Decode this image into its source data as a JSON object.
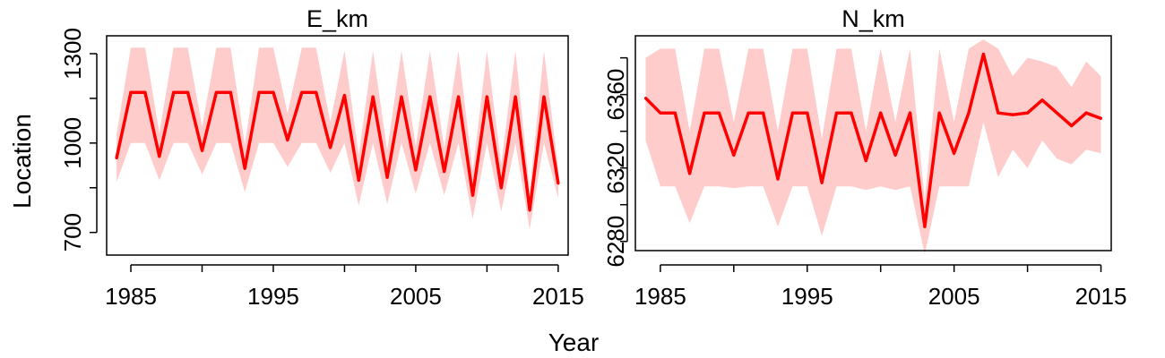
{
  "figure": {
    "xlabel": "Year",
    "ylabel": "Location"
  },
  "colors": {
    "line": "#ff0000",
    "band": "#ffcccc",
    "axis": "#000000"
  },
  "chart_data": [
    {
      "type": "line",
      "title": "E_km",
      "xlim": [
        1983.3,
        2015.7
      ],
      "ylim": [
        624,
        1360
      ],
      "xticks": [
        1985,
        1990,
        1995,
        2000,
        2005,
        2010,
        2015
      ],
      "xtick_labels": [
        "1985",
        "",
        "1995",
        "",
        "2005",
        "",
        "2015"
      ],
      "yticks": [
        700,
        850,
        1000,
        1150,
        1300
      ],
      "ytick_labels": [
        "700",
        "",
        "1000",
        "",
        "1300"
      ],
      "series": [
        {
          "x": [
            1984,
            1985,
            1986,
            1987,
            1988,
            1989,
            1990,
            1991,
            1992,
            1993,
            1994,
            1995,
            1996,
            1997,
            1998,
            1999,
            2000,
            2001,
            2002,
            2003,
            2004,
            2005,
            2006,
            2007,
            2008,
            2009,
            2010,
            2011,
            2012,
            2013,
            2014,
            2015
          ],
          "y": [
            950,
            1170,
            1170,
            955,
            1170,
            1170,
            975,
            1170,
            1170,
            915,
            1170,
            1170,
            1010,
            1170,
            1170,
            985,
            1160,
            875,
            1155,
            885,
            1155,
            910,
            1155,
            905,
            1155,
            825,
            1155,
            850,
            1155,
            775,
            1155,
            865
          ],
          "lower": [
            870,
            1000,
            1000,
            875,
            1000,
            1000,
            895,
            1000,
            1000,
            835,
            1000,
            1000,
            920,
            1000,
            1000,
            900,
            1000,
            790,
            1000,
            795,
            1000,
            830,
            1000,
            825,
            1000,
            745,
            1000,
            770,
            1000,
            710,
            1000,
            815
          ],
          "upper": [
            1030,
            1320,
            1320,
            1035,
            1320,
            1320,
            1055,
            1320,
            1320,
            995,
            1320,
            1320,
            1100,
            1320,
            1320,
            1070,
            1310,
            960,
            1310,
            975,
            1310,
            990,
            1310,
            985,
            1310,
            905,
            1310,
            930,
            1310,
            840,
            1310,
            915
          ]
        }
      ]
    },
    {
      "type": "line",
      "title": "N_km",
      "xlim": [
        1983.3,
        2015.7
      ],
      "ylim": [
        6275,
        6392
      ],
      "xticks": [
        1985,
        1990,
        1995,
        2000,
        2005,
        2010,
        2015
      ],
      "xtick_labels": [
        "1985",
        "",
        "1995",
        "",
        "2005",
        "",
        "2015"
      ],
      "yticks": [
        6280,
        6300,
        6320,
        6340,
        6360,
        6380
      ],
      "ytick_labels": [
        "6280",
        "",
        "6320",
        "",
        "6360",
        ""
      ],
      "series": [
        {
          "x": [
            1984,
            1985,
            1986,
            1987,
            1988,
            1989,
            1990,
            1991,
            1992,
            1993,
            1994,
            1995,
            1996,
            1997,
            1998,
            1999,
            2000,
            2001,
            2002,
            2003,
            2004,
            2005,
            2006,
            2007,
            2008,
            2009,
            2010,
            2011,
            2012,
            2013,
            2014,
            2015
          ],
          "y": [
            6358,
            6350,
            6350,
            6317,
            6350,
            6350,
            6327,
            6350,
            6350,
            6314,
            6350,
            6350,
            6312,
            6350,
            6350,
            6324,
            6350,
            6327,
            6350,
            6288,
            6350,
            6328,
            6350,
            6382,
            6350,
            6349,
            6350,
            6357,
            6350,
            6343,
            6350,
            6347
          ],
          "lower": [
            6335,
            6310,
            6310,
            6290,
            6310,
            6310,
            6309,
            6310,
            6310,
            6288,
            6310,
            6310,
            6283,
            6310,
            6310,
            6308,
            6310,
            6308,
            6310,
            6273,
            6310,
            6310,
            6310,
            6345,
            6315,
            6330,
            6320,
            6335,
            6325,
            6322,
            6330,
            6328
          ],
          "upper": [
            6380,
            6385,
            6385,
            6340,
            6385,
            6385,
            6345,
            6385,
            6385,
            6340,
            6385,
            6385,
            6336,
            6385,
            6385,
            6340,
            6385,
            6345,
            6385,
            6303,
            6385,
            6345,
            6385,
            6390,
            6385,
            6370,
            6380,
            6378,
            6375,
            6364,
            6378,
            6370
          ]
        }
      ]
    }
  ]
}
